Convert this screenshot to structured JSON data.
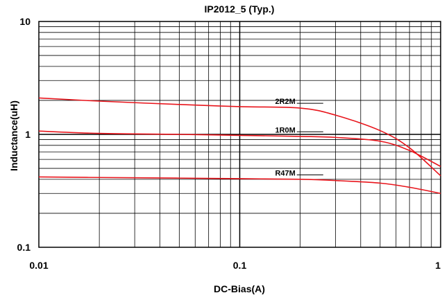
{
  "chart_data": {
    "type": "line",
    "title": "IP2012_5 (Typ.)",
    "xlabel": "DC-Bias(A)",
    "ylabel": "Inductance(uH)",
    "xscale": "log",
    "yscale": "log",
    "xlim": [
      0.01,
      1
    ],
    "ylim": [
      0.1,
      10
    ],
    "xticks": [
      {
        "value": 0.01,
        "label": "0.01"
      },
      {
        "value": 0.1,
        "label": "0.1"
      },
      {
        "value": 1,
        "label": "1"
      }
    ],
    "yticks": [
      {
        "value": 10,
        "label": "10"
      },
      {
        "value": 1,
        "label": "1"
      },
      {
        "value": 0.1,
        "label": "0.1"
      }
    ],
    "grid": true,
    "legend": "none",
    "line_color": "#e8141b",
    "series": [
      {
        "name": "2R2M",
        "points": [
          [
            0.01,
            2.1
          ],
          [
            0.02,
            1.97
          ],
          [
            0.05,
            1.84
          ],
          [
            0.1,
            1.76
          ],
          [
            0.2,
            1.71
          ],
          [
            0.3,
            1.48
          ],
          [
            0.5,
            1.08
          ],
          [
            0.7,
            0.76
          ],
          [
            1.0,
            0.43
          ]
        ]
      },
      {
        "name": "1R0M",
        "points": [
          [
            0.01,
            1.07
          ],
          [
            0.02,
            1.02
          ],
          [
            0.05,
            1.0
          ],
          [
            0.1,
            0.98
          ],
          [
            0.2,
            0.96
          ],
          [
            0.3,
            0.94
          ],
          [
            0.5,
            0.87
          ],
          [
            0.7,
            0.72
          ],
          [
            1.0,
            0.52
          ]
        ]
      },
      {
        "name": "R47M",
        "points": [
          [
            0.01,
            0.42
          ],
          [
            0.02,
            0.415
          ],
          [
            0.05,
            0.41
          ],
          [
            0.1,
            0.405
          ],
          [
            0.2,
            0.4
          ],
          [
            0.3,
            0.39
          ],
          [
            0.5,
            0.37
          ],
          [
            0.7,
            0.34
          ],
          [
            1.0,
            0.3
          ]
        ]
      }
    ],
    "label_anchor_x": [
      0.15,
      0.15,
      0.15
    ]
  }
}
